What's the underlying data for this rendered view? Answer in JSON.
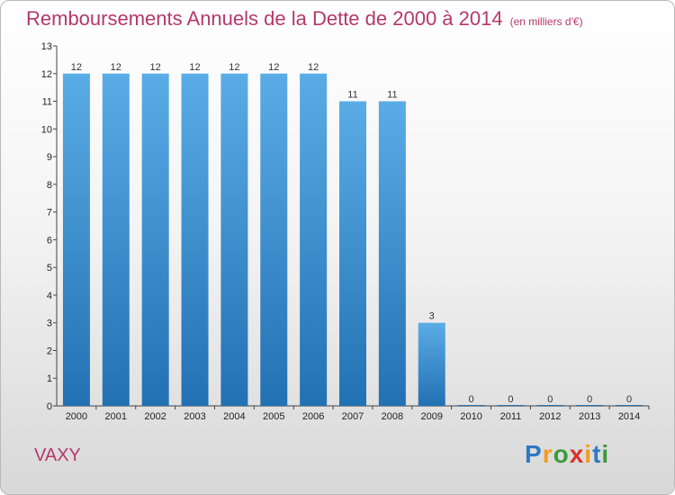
{
  "title": "Remboursements Annuels de la Dette de 2000 à 2014",
  "unit": "(en milliers d'€)",
  "commune": "VAXY",
  "logo": {
    "p": "P",
    "r": "r",
    "o": "o",
    "x": "x",
    "i1": "i",
    "t": "t",
    "i2": "i"
  },
  "colors": {
    "bar_top": "#5aace6",
    "bar_bottom": "#2271b3",
    "title": "#b5386a"
  },
  "chart_data": {
    "type": "bar",
    "title": "Remboursements Annuels de la Dette de 2000 à 2014",
    "categories": [
      "2000",
      "2001",
      "2002",
      "2003",
      "2004",
      "2005",
      "2006",
      "2007",
      "2008",
      "2009",
      "2010",
      "2011",
      "2012",
      "2013",
      "2014"
    ],
    "values": [
      12,
      12,
      12,
      12,
      12,
      12,
      12,
      11,
      11,
      3,
      0,
      0,
      0,
      0,
      0
    ],
    "data_labels": [
      "12",
      "12",
      "12",
      "12",
      "12",
      "12",
      "12",
      "11",
      "11",
      "3",
      "0",
      "0",
      "0",
      "0",
      "0"
    ],
    "ylim": [
      0,
      13
    ],
    "yticks": [
      0,
      1,
      2,
      3,
      4,
      5,
      6,
      7,
      8,
      9,
      10,
      11,
      12,
      13
    ],
    "grid": false,
    "xlabel": "",
    "ylabel": ""
  }
}
